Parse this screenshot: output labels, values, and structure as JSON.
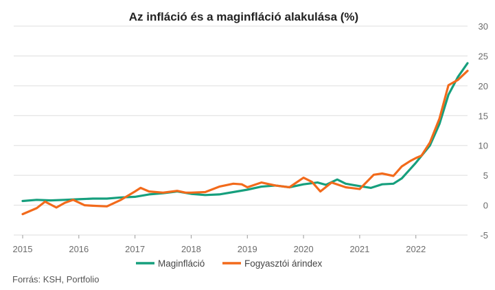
{
  "chart_data": {
    "type": "line",
    "title": "Az infláció és a maginfláció alakulása (%)",
    "xlabel": "",
    "ylabel": "",
    "xlim": [
      2015,
      2022.92
    ],
    "ylim": [
      -5,
      30
    ],
    "x_ticks": [
      "2015",
      "2016",
      "2017",
      "2018",
      "2019",
      "2020",
      "2021",
      "2022"
    ],
    "y_ticks": [
      "30",
      "25",
      "20",
      "15",
      "10",
      "5",
      "0",
      "-5"
    ],
    "grid": true,
    "legend_position": "bottom",
    "series": [
      {
        "name": "Maginfláció",
        "color": "#169f7d",
        "points": [
          [
            2015.0,
            0.7
          ],
          [
            2015.25,
            0.9
          ],
          [
            2015.5,
            0.8
          ],
          [
            2015.75,
            0.9
          ],
          [
            2016.0,
            1.0
          ],
          [
            2016.25,
            1.1
          ],
          [
            2016.5,
            1.1
          ],
          [
            2016.75,
            1.3
          ],
          [
            2017.0,
            1.4
          ],
          [
            2017.25,
            1.8
          ],
          [
            2017.5,
            2.0
          ],
          [
            2017.75,
            2.3
          ],
          [
            2018.0,
            1.9
          ],
          [
            2018.25,
            1.7
          ],
          [
            2018.5,
            1.8
          ],
          [
            2018.75,
            2.2
          ],
          [
            2019.0,
            2.6
          ],
          [
            2019.25,
            3.1
          ],
          [
            2019.5,
            3.3
          ],
          [
            2019.75,
            3.0
          ],
          [
            2020.0,
            3.5
          ],
          [
            2020.25,
            3.8
          ],
          [
            2020.4,
            3.4
          ],
          [
            2020.6,
            4.3
          ],
          [
            2020.75,
            3.6
          ],
          [
            2021.0,
            3.2
          ],
          [
            2021.2,
            2.9
          ],
          [
            2021.4,
            3.5
          ],
          [
            2021.6,
            3.6
          ],
          [
            2021.75,
            4.5
          ],
          [
            2022.0,
            7.1
          ],
          [
            2022.25,
            10.0
          ],
          [
            2022.42,
            13.6
          ],
          [
            2022.58,
            18.5
          ],
          [
            2022.75,
            21.5
          ],
          [
            2022.92,
            23.8
          ]
        ]
      },
      {
        "name": "Fogyasztói árindex",
        "color": "#f26a1b",
        "points": [
          [
            2015.0,
            -1.5
          ],
          [
            2015.25,
            -0.5
          ],
          [
            2015.4,
            0.6
          ],
          [
            2015.6,
            -0.4
          ],
          [
            2015.75,
            0.4
          ],
          [
            2015.9,
            0.9
          ],
          [
            2016.1,
            0.0
          ],
          [
            2016.25,
            -0.1
          ],
          [
            2016.5,
            -0.2
          ],
          [
            2016.75,
            0.9
          ],
          [
            2017.0,
            2.3
          ],
          [
            2017.1,
            2.9
          ],
          [
            2017.25,
            2.3
          ],
          [
            2017.5,
            2.1
          ],
          [
            2017.75,
            2.4
          ],
          [
            2017.9,
            2.1
          ],
          [
            2018.0,
            2.1
          ],
          [
            2018.25,
            2.2
          ],
          [
            2018.5,
            3.1
          ],
          [
            2018.75,
            3.6
          ],
          [
            2018.9,
            3.5
          ],
          [
            2019.0,
            3.0
          ],
          [
            2019.25,
            3.8
          ],
          [
            2019.5,
            3.3
          ],
          [
            2019.75,
            3.0
          ],
          [
            2020.0,
            4.6
          ],
          [
            2020.15,
            3.9
          ],
          [
            2020.3,
            2.3
          ],
          [
            2020.5,
            3.8
          ],
          [
            2020.75,
            3.0
          ],
          [
            2021.0,
            2.7
          ],
          [
            2021.25,
            5.1
          ],
          [
            2021.4,
            5.3
          ],
          [
            2021.6,
            4.9
          ],
          [
            2021.75,
            6.5
          ],
          [
            2021.9,
            7.4
          ],
          [
            2022.0,
            7.9
          ],
          [
            2022.1,
            8.3
          ],
          [
            2022.25,
            10.5
          ],
          [
            2022.42,
            14.5
          ],
          [
            2022.58,
            20.1
          ],
          [
            2022.75,
            21.0
          ],
          [
            2022.92,
            22.5
          ]
        ]
      }
    ]
  },
  "source": "Forrás: KSH, Portfolio"
}
